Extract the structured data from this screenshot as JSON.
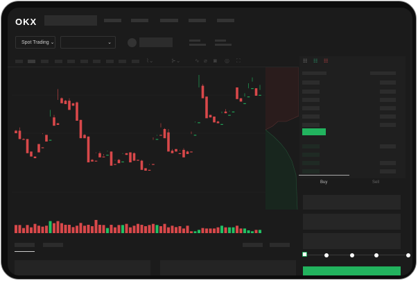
{
  "header": {
    "logo": "OKX"
  },
  "toolbar": {
    "market_button": "Spot Trading",
    "market_dropdown": "",
    "chevron": "⌄"
  },
  "orderbook": {
    "view_icons": [
      "orderbook-both-icon",
      "orderbook-bids-icon",
      "orderbook-asks-icon"
    ]
  },
  "trade": {
    "tabs": [
      "Buy",
      "Sell"
    ],
    "active_tab": "Buy",
    "slider_percent": 0,
    "submit_color": "#22b35e"
  },
  "colors": {
    "up": "#22c064",
    "down": "#d8484a",
    "background": "#1b1b1b"
  },
  "chart_data": {
    "type": "candlestick",
    "title": "",
    "xlabel": "",
    "ylabel": "",
    "grid": true,
    "ohlc": [
      [
        118,
        118,
        119,
        115
      ],
      [
        118,
        122,
        108,
        108
      ],
      [
        108,
        109,
        108,
        107
      ],
      [
        108,
        93,
        108,
        91
      ],
      [
        93,
        89,
        93,
        87
      ],
      [
        87,
        100,
        100,
        85
      ],
      [
        102,
        93,
        102,
        92
      ],
      [
        98,
        114,
        115,
        97
      ],
      [
        113,
        106,
        113,
        105
      ],
      [
        107,
        135,
        143,
        107
      ],
      [
        134,
        125,
        137,
        124
      ],
      [
        127,
        155,
        168,
        125
      ],
      [
        157,
        152,
        158,
        151
      ],
      [
        154,
        151,
        155,
        150
      ],
      [
        154,
        144,
        157,
        143
      ],
      [
        151,
        148,
        151,
        148
      ],
      [
        152,
        131,
        153,
        130
      ],
      [
        131,
        110,
        131,
        109
      ],
      [
        113,
        110,
        114,
        109
      ],
      [
        111,
        83,
        111,
        80
      ],
      [
        83,
        82,
        84,
        81
      ],
      [
        82,
        91,
        92,
        81
      ],
      [
        91,
        87,
        93,
        86
      ],
      [
        87,
        88,
        90,
        86
      ],
      [
        89,
        93,
        94,
        89
      ],
      [
        93,
        78,
        93,
        76
      ],
      [
        78,
        82,
        83,
        77
      ],
      [
        83,
        80,
        84,
        79
      ],
      [
        81,
        90,
        91,
        81
      ],
      [
        91,
        89,
        91,
        89
      ],
      [
        92,
        81,
        92,
        80
      ],
      [
        91,
        83,
        92,
        82
      ],
      [
        83,
        82,
        83,
        82
      ],
      [
        82,
        72,
        83,
        71
      ],
      [
        73,
        71,
        73,
        70
      ],
      [
        71,
        77,
        78,
        70
      ],
      [
        78,
        107,
        110,
        77
      ],
      [
        108,
        112,
        113,
        108
      ],
      [
        113,
        122,
        127,
        112
      ],
      [
        120,
        110,
        121,
        109
      ],
      [
        116,
        94,
        120,
        93
      ],
      [
        94,
        93,
        96,
        91
      ],
      [
        96,
        93,
        96,
        93
      ],
      [
        91,
        94,
        95,
        90
      ],
      [
        95,
        86,
        97,
        86
      ],
      [
        93,
        91,
        94,
        90
      ],
      [
        93,
        114,
        117,
        92
      ],
      [
        113,
        128,
        129,
        113
      ],
      [
        128,
        170,
        185,
        128
      ],
      [
        172,
        158,
        174,
        157
      ],
      [
        159,
        135,
        159,
        133
      ],
      [
        137,
        135,
        137,
        134
      ],
      [
        135,
        129,
        135,
        128
      ],
      [
        129,
        128,
        130,
        127
      ],
      [
        126,
        139,
        141,
        126
      ],
      [
        141,
        139,
        144,
        139
      ],
      [
        137,
        141,
        142,
        137
      ],
      [
        141,
        168,
        168,
        141
      ],
      [
        170,
        157,
        170,
        156
      ],
      [
        157,
        153,
        157,
        153
      ],
      [
        151,
        159,
        163,
        151
      ],
      [
        159,
        169,
        175,
        159
      ],
      [
        169,
        177,
        182,
        169
      ],
      [
        169,
        163,
        169,
        160
      ],
      [
        161,
        167,
        173,
        161
      ]
    ],
    "volume": [
      35,
      35,
      22,
      35,
      25,
      40,
      32,
      28,
      32,
      52,
      43,
      52,
      43,
      36,
      36,
      26,
      32,
      44,
      32,
      36,
      30,
      57,
      36,
      35,
      22,
      36,
      25,
      35,
      35,
      40,
      25,
      32,
      40,
      36,
      30,
      35,
      40,
      35,
      30,
      40,
      25,
      32,
      26,
      30,
      20,
      32,
      8,
      8,
      14,
      22,
      20,
      20,
      20,
      25,
      32,
      25,
      25,
      25,
      32,
      20,
      20,
      12,
      8,
      14,
      14
    ]
  }
}
